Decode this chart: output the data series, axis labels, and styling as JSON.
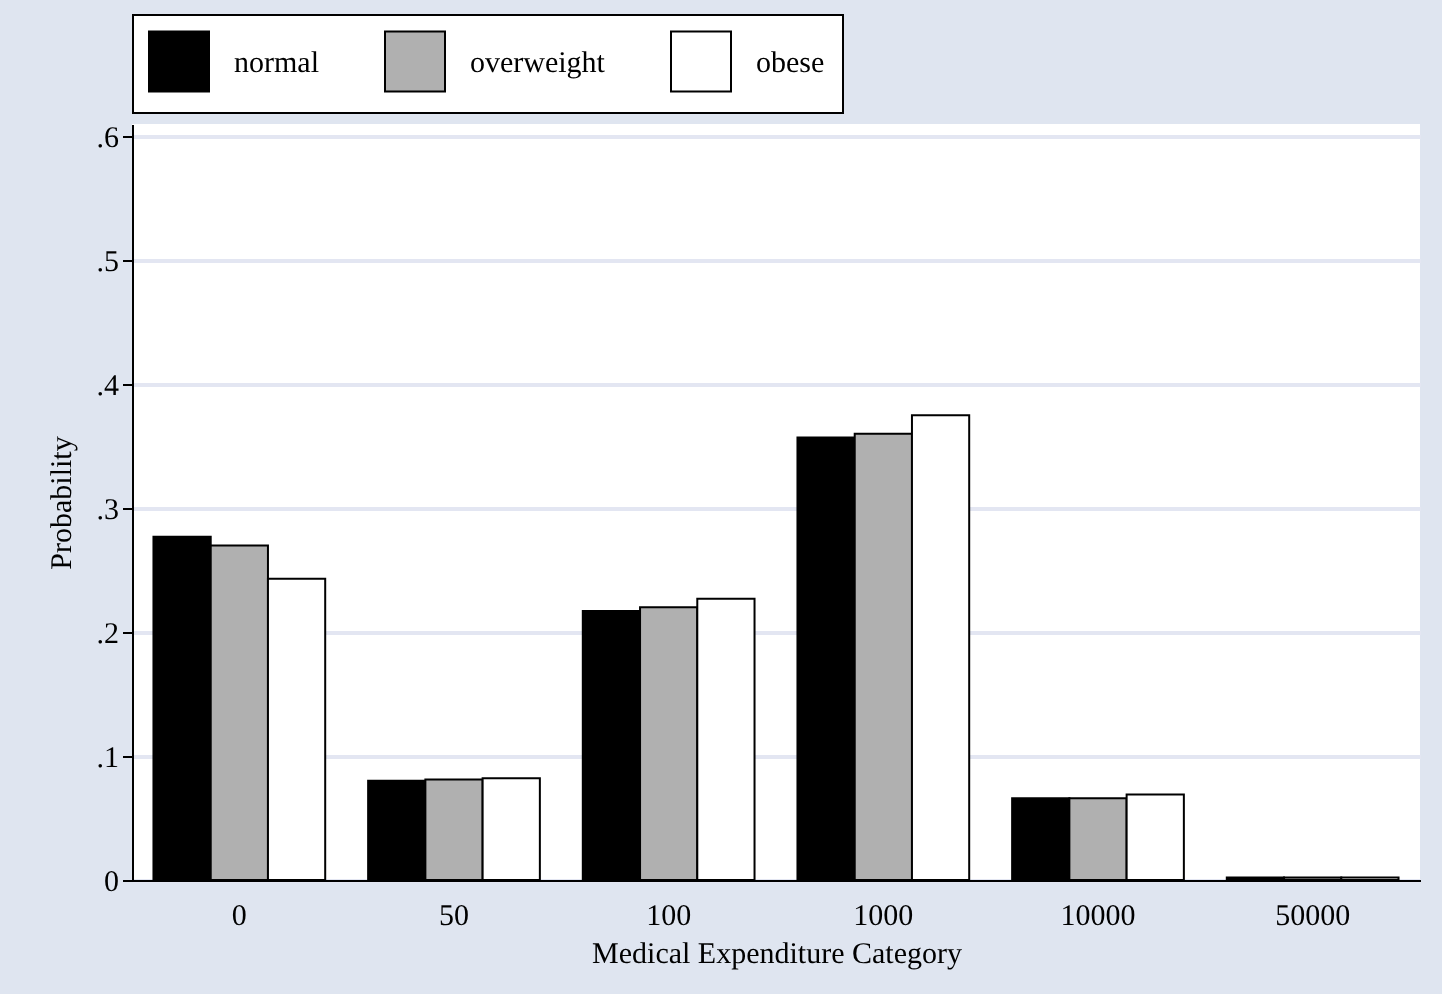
{
  "chart_data": {
    "type": "bar",
    "xlabel": "Medical Expenditure Category",
    "ylabel": "Probability",
    "categories": [
      "0",
      "50",
      "100",
      "1000",
      "10000",
      "50000"
    ],
    "series": [
      {
        "name": "normal",
        "color": "#000000",
        "values": [
          0.277,
          0.08,
          0.217,
          0.357,
          0.066,
          0.002
        ]
      },
      {
        "name": "overweight",
        "color": "#b0b0b0",
        "values": [
          0.27,
          0.081,
          0.22,
          0.36,
          0.066,
          0.002
        ]
      },
      {
        "name": "obese",
        "color": "#ffffff",
        "values": [
          0.243,
          0.082,
          0.227,
          0.375,
          0.069,
          0.002
        ]
      }
    ],
    "ylim": [
      0,
      0.61
    ],
    "yticks": [
      {
        "value": 0,
        "label": "0"
      },
      {
        "value": 0.1,
        "label": ".1"
      },
      {
        "value": 0.2,
        "label": ".2"
      },
      {
        "value": 0.3,
        "label": ".3"
      },
      {
        "value": 0.4,
        "label": ".4"
      },
      {
        "value": 0.5,
        "label": ".5"
      },
      {
        "value": 0.6,
        "label": ".6"
      }
    ],
    "grid": "y",
    "legend": "top"
  }
}
